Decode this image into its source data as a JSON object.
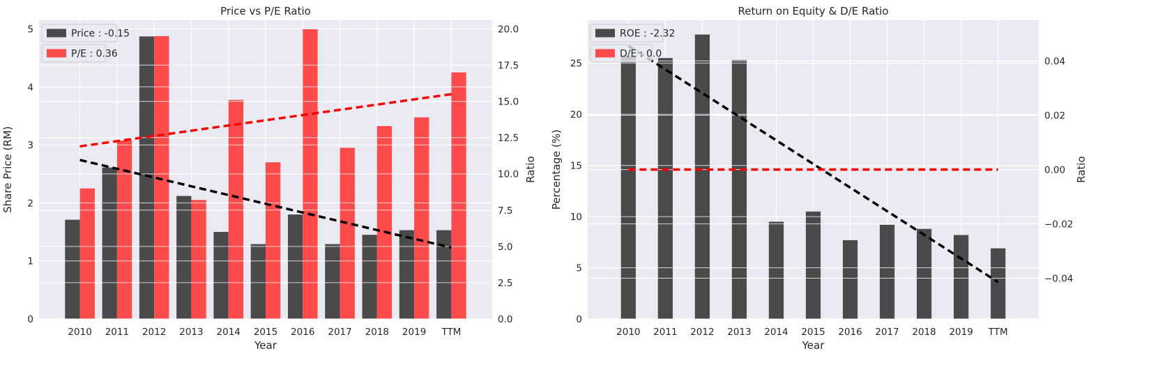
{
  "colors": {
    "background": "#ffffff",
    "plot_bg": "#eaeaf2",
    "grid": "#ffffff",
    "bar_dark": "#333333",
    "bar_red": "#ff3333",
    "trend_dark": "#000000",
    "trend_red": "#ff0000"
  },
  "chart_data": [
    {
      "type": "bar",
      "title": "Price vs P/E Ratio",
      "xlabel": "Year",
      "ylabel": "Share Price (RM)",
      "y2label": "Ratio",
      "categories": [
        "2010",
        "2011",
        "2012",
        "2013",
        "2014",
        "2015",
        "2016",
        "2017",
        "2018",
        "2019",
        "TTM"
      ],
      "ylim": [
        0,
        5.15
      ],
      "yticks": [
        0,
        1,
        2,
        3,
        4,
        5
      ],
      "y2lim": [
        0,
        20.6
      ],
      "y2ticks": [
        0.0,
        2.5,
        5.0,
        7.5,
        10.0,
        12.5,
        15.0,
        17.5,
        20.0
      ],
      "legend_position": "top-left",
      "grid": true,
      "series": [
        {
          "name": "Price : -0.15",
          "axis": "left",
          "values": [
            1.71,
            2.61,
            4.87,
            2.12,
            1.5,
            1.29,
            1.8,
            1.29,
            1.45,
            1.53,
            1.53
          ]
        },
        {
          "name": "P/E : 0.36",
          "axis": "right",
          "values": [
            9.0,
            12.3,
            19.5,
            8.2,
            15.1,
            10.8,
            20.0,
            11.8,
            13.3,
            13.9,
            17.0
          ]
        }
      ],
      "trendlines": [
        {
          "axis": "left",
          "from": [
            0,
            2.74
          ],
          "to": [
            10,
            1.23
          ]
        },
        {
          "axis": "right",
          "from": [
            0,
            11.9
          ],
          "to": [
            10,
            15.5
          ]
        }
      ]
    },
    {
      "type": "bar",
      "title": "Return on Equity & D/E Ratio",
      "xlabel": "Year",
      "ylabel": "Percentage (%)",
      "y2label": "Ratio",
      "categories": [
        "2010",
        "2011",
        "2012",
        "2013",
        "2014",
        "2015",
        "2016",
        "2017",
        "2018",
        "2019",
        "TTM"
      ],
      "ylim": [
        0,
        29.2
      ],
      "yticks": [
        0,
        5,
        10,
        15,
        20,
        25
      ],
      "y2lim": [
        -0.055,
        0.055
      ],
      "y2ticks": [
        -0.04,
        -0.02,
        0.0,
        0.02,
        0.04
      ],
      "legend_position": "top-left",
      "grid": true,
      "series": [
        {
          "name": "ROE : -2.32",
          "axis": "left",
          "values": [
            25.7,
            25.5,
            27.8,
            25.3,
            9.5,
            10.5,
            7.7,
            9.2,
            8.8,
            8.2,
            6.9
          ]
        },
        {
          "name": "D/E : 0.0",
          "axis": "right",
          "values": [
            0,
            0,
            0,
            0,
            0,
            0,
            0,
            0,
            0,
            0,
            0
          ]
        }
      ],
      "trendlines": [
        {
          "axis": "left",
          "from": [
            0,
            26.7
          ],
          "to": [
            10,
            3.6
          ]
        },
        {
          "axis": "right",
          "from": [
            0,
            0.0
          ],
          "to": [
            10,
            0.0
          ]
        }
      ]
    }
  ]
}
